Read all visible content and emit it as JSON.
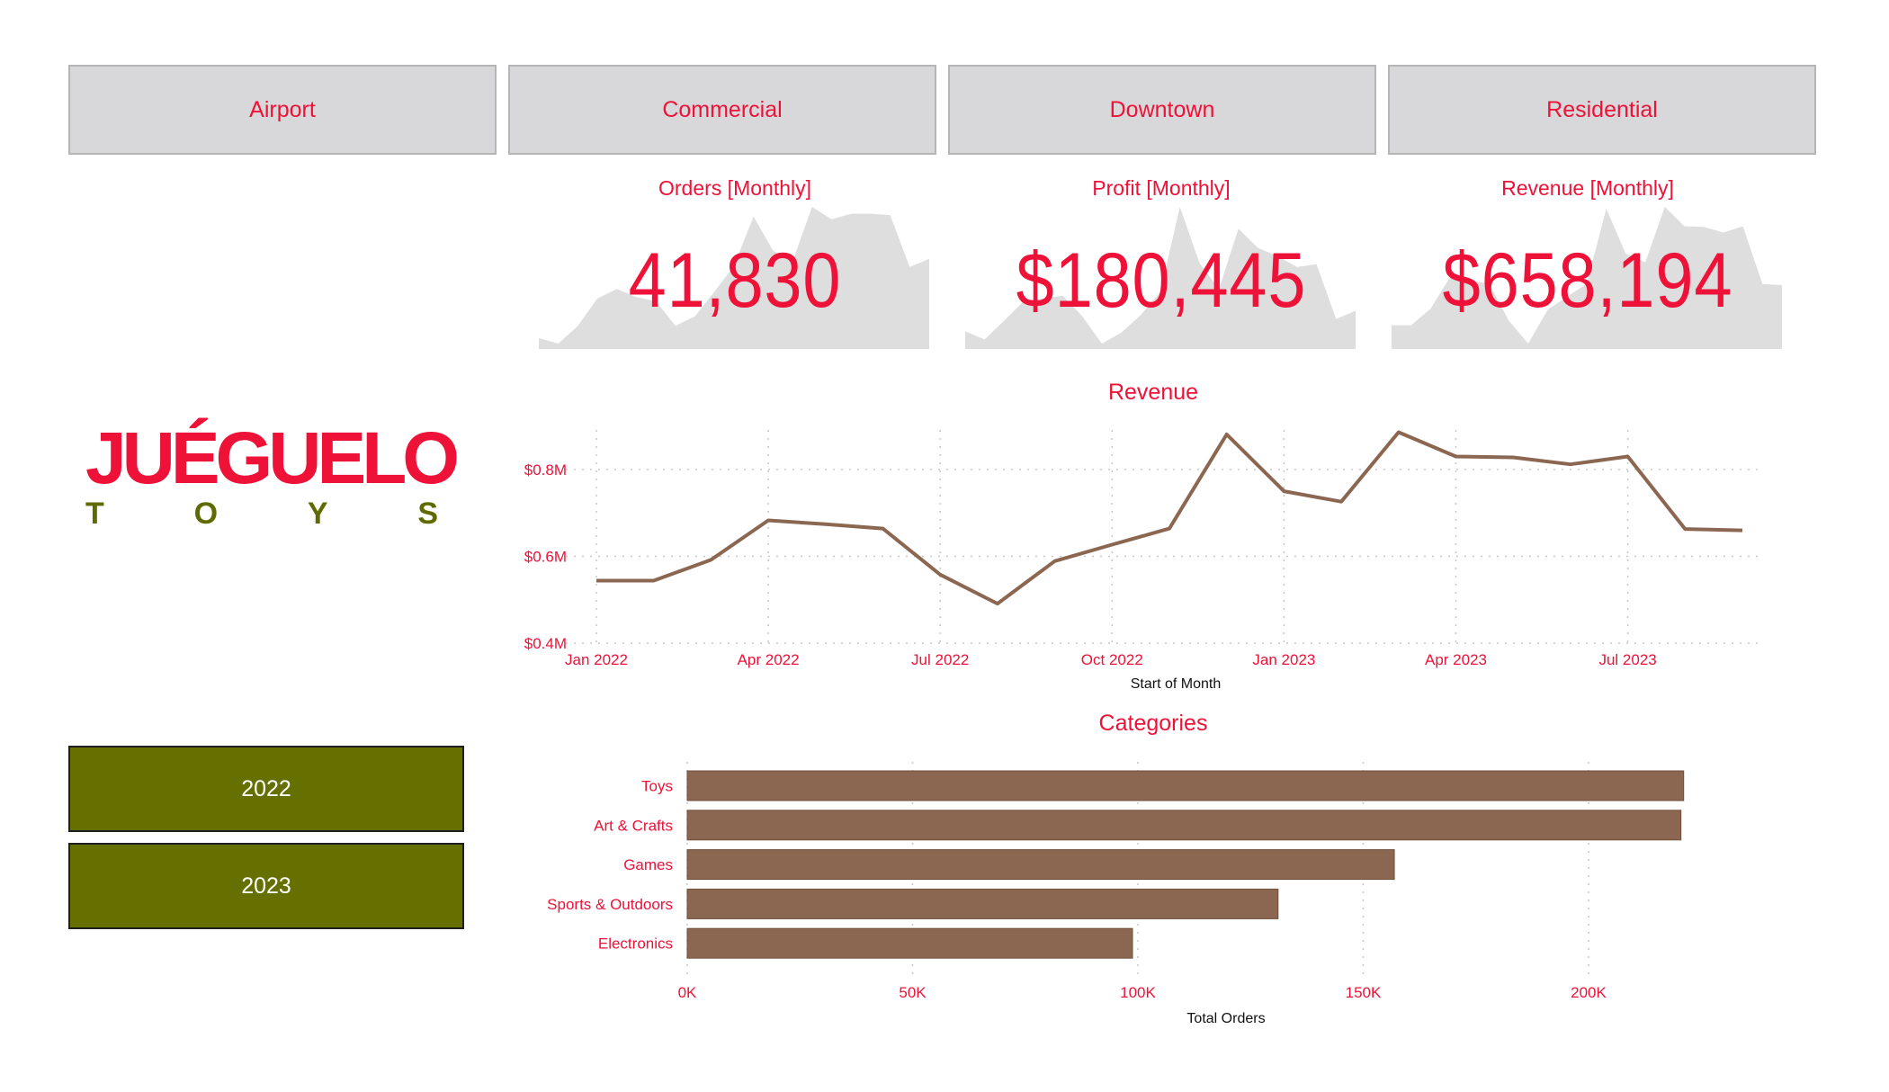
{
  "slicers": {
    "locations": [
      "Airport",
      "Commercial",
      "Downtown",
      "Residential"
    ],
    "years": [
      "2022",
      "2023"
    ]
  },
  "logo": {
    "main": "JUÉGUELO",
    "sub": [
      "T",
      "O",
      "Y",
      "S"
    ]
  },
  "kpis": [
    {
      "title": "Orders [Monthly]",
      "value": "41,830",
      "trend_index": [
        4,
        0,
        13,
        33,
        40,
        34,
        31,
        13,
        20,
        38,
        57,
        93,
        68,
        60,
        100,
        91,
        95,
        95,
        94,
        56,
        62
      ]
    },
    {
      "title": "Profit [Monthly]",
      "value": "$180,445",
      "trend_index": [
        9,
        3,
        17,
        31,
        33,
        35,
        20,
        0,
        8,
        21,
        38,
        100,
        59,
        40,
        84,
        70,
        64,
        56,
        58,
        18,
        24
      ]
    },
    {
      "title": "Revenue [Monthly]",
      "value": "$658,194",
      "trend_source": "revenue"
    }
  ],
  "colors": {
    "accent_red": "#EE1238",
    "olive": "#667000",
    "brown": "#8B6650",
    "slicer_gray": "#D8D8DA",
    "sparkline_gray": "#DEDEDE"
  },
  "chart_data": [
    {
      "type": "line",
      "title": "Revenue",
      "xlabel": "Start of Month",
      "ylabel": "",
      "x": [
        "Jan 2022",
        "Feb 2022",
        "Mar 2022",
        "Apr 2022",
        "May 2022",
        "Jun 2022",
        "Jul 2022",
        "Aug 2022",
        "Sep 2022",
        "Oct 2022",
        "Nov 2022",
        "Dec 2022",
        "Jan 2023",
        "Feb 2023",
        "Mar 2023",
        "Apr 2023",
        "May 2023",
        "Jun 2023",
        "Jul 2023",
        "Aug 2023",
        "Sep 2023"
      ],
      "values": [
        0.544,
        0.544,
        0.592,
        0.683,
        0.674,
        0.664,
        0.558,
        0.491,
        0.589,
        0.627,
        0.664,
        0.881,
        0.75,
        0.726,
        0.886,
        0.83,
        0.828,
        0.812,
        0.83,
        0.663,
        0.66
      ],
      "unit": "$M",
      "x_tick_labels": [
        "Jan 2022",
        "Apr 2022",
        "Jul 2022",
        "Oct 2022",
        "Jan 2023",
        "Apr 2023",
        "Jul 2023"
      ],
      "x_tick_index": [
        0,
        3,
        6,
        9,
        12,
        15,
        18
      ],
      "y_ticks": [
        0.4,
        0.6,
        0.8
      ],
      "y_tick_labels": [
        "$0.4M",
        "$0.6M",
        "$0.8M"
      ],
      "ylim": [
        0.4,
        0.9
      ],
      "grid": true
    },
    {
      "type": "bar",
      "orientation": "horizontal",
      "title": "Categories",
      "xlabel": "Total Orders",
      "ylabel": "",
      "categories": [
        "Toys",
        "Art & Crafts",
        "Games",
        "Sports & Outdoors",
        "Electronics"
      ],
      "values": [
        221100,
        220500,
        156900,
        131100,
        98800
      ],
      "x_ticks": [
        0,
        50000,
        100000,
        150000,
        200000
      ],
      "x_tick_labels": [
        "0K",
        "50K",
        "100K",
        "150K",
        "200K"
      ],
      "xlim": [
        0,
        240000
      ],
      "grid": true
    }
  ]
}
